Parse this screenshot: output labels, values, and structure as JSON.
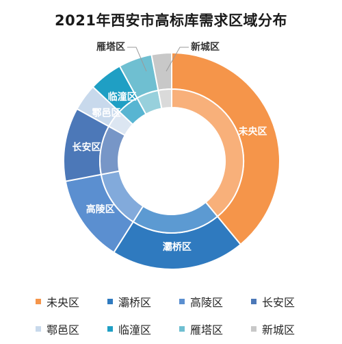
{
  "chart_data": {
    "type": "pie",
    "title": "2021年西安市高标库需求区域分布",
    "categories": [
      "未央区",
      "灞桥区",
      "高陵区",
      "长安区",
      "鄠邑区",
      "临潼区",
      "雁塔区",
      "新城区"
    ],
    "values": [
      39,
      20,
      13,
      11,
      4,
      5,
      5,
      3
    ],
    "colors": [
      "#F5954A",
      "#2F7ABF",
      "#5B8FD0",
      "#4C78B8",
      "#C8D9EC",
      "#1F9FC4",
      "#6FBFD1",
      "#C8C8C8"
    ],
    "inner_colors": [
      "#F8B07A",
      "#5C9AD2",
      "#82AADB",
      "#7796C7",
      "#DCE6F2",
      "#58B5D2",
      "#97D0DC",
      "#DADADA"
    ],
    "legend_position": "bottom",
    "label_position": "inside"
  }
}
